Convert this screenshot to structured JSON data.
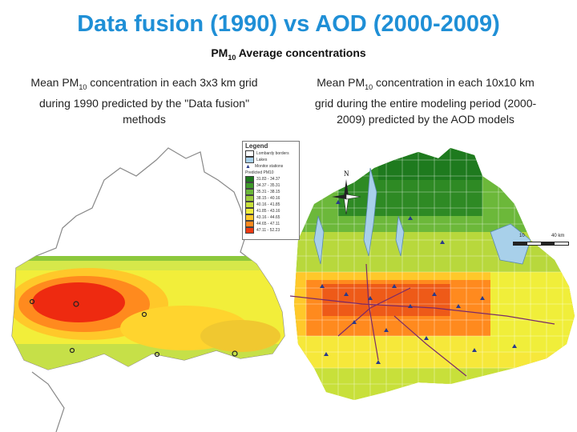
{
  "title": "Data fusion (1990) vs AOD (2000-2009)",
  "subtitle": {
    "text": "PM",
    "sub": "10",
    "rest": " Average concentrations"
  },
  "caption_left": {
    "pre": "Mean PM",
    "sub": "10",
    "post": " concentration in each 3x3 km grid during 1990 predicted by the \"Data fusion\" methods"
  },
  "caption_right": {
    "pre": "Mean PM",
    "sub": "10",
    "post": " concentration in each 10x10 km grid during the entire modeling period (2000-2009) predicted by the AOD models"
  },
  "legend": {
    "title": "Legend",
    "items": [
      "Lombardy borders",
      "Lakes",
      "Monitor stations"
    ],
    "predicted_label": "Predicted PM10",
    "classes": [
      {
        "range": "31.83 - 34.37",
        "color": "#1e7a1e"
      },
      {
        "range": "34.37 - 35.31",
        "color": "#3f9a2a"
      },
      {
        "range": "35.31 - 38.15",
        "color": "#6cb83a"
      },
      {
        "range": "38.15 - 40.16",
        "color": "#9ccc3c"
      },
      {
        "range": "40.16 - 41.85",
        "color": "#c8e03a"
      },
      {
        "range": "41.85 - 43.16",
        "color": "#f0ee3a"
      },
      {
        "range": "43.16 - 44.65",
        "color": "#ffc82a"
      },
      {
        "range": "44.65 - 47.11",
        "color": "#ff8a1e"
      },
      {
        "range": "47.11 - 52.23",
        "color": "#ee3a12"
      }
    ]
  },
  "compass_label": "N",
  "scale": {
    "left": "10",
    "right": "40 km"
  }
}
